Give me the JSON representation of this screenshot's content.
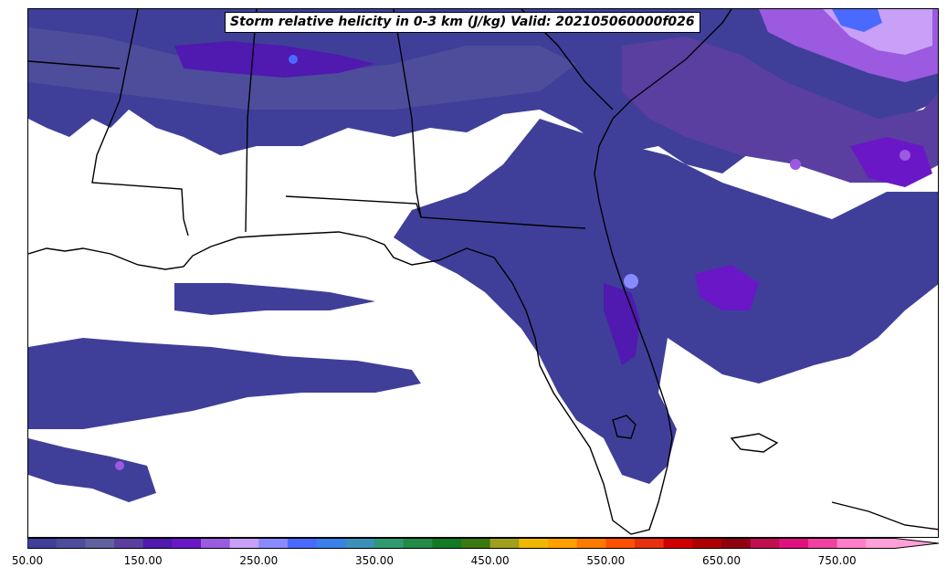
{
  "title": "Storm relative helicity in 0-3 km (J/kg) Valid: 202105060000f026",
  "colorbar": {
    "tick_labels": [
      "50.00",
      "150.00",
      "250.00",
      "350.00",
      "450.00",
      "550.00",
      "650.00",
      "750.00"
    ],
    "tick_values": [
      50,
      150,
      250,
      350,
      450,
      550,
      650,
      750
    ],
    "min": 50,
    "max": 800,
    "extend": "max",
    "colors": [
      "#3f3f9a",
      "#4d4d9c",
      "#61619f",
      "#5a3fa0",
      "#5019b0",
      "#6a17c8",
      "#9b5ae0",
      "#c8a0f8",
      "#8a8aff",
      "#4a6aff",
      "#3a80e8",
      "#3a90b8",
      "#2e9a70",
      "#238a48",
      "#127a22",
      "#3a7a10",
      "#a0a020",
      "#f0b800",
      "#ffa000",
      "#ff7a00",
      "#ff5000",
      "#e83010",
      "#d00000",
      "#b00000",
      "#900010",
      "#c01050",
      "#e01080",
      "#f040a0",
      "#ff80c8",
      "#ffa0d8"
    ]
  },
  "map": {
    "field": "Storm relative helicity 0-3 km",
    "background": "#ffffff",
    "boundaries_color": "#000000"
  }
}
